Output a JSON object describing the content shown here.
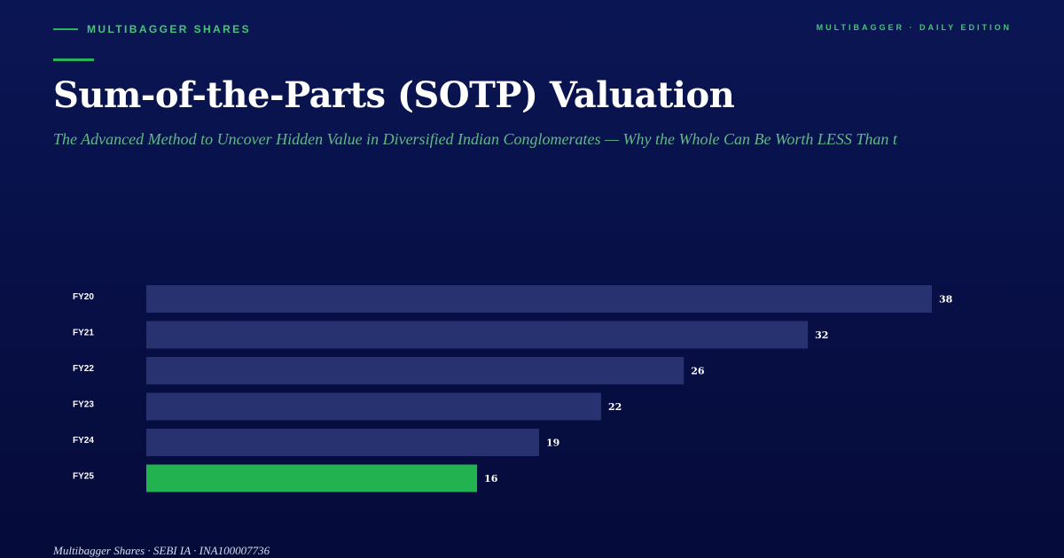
{
  "header": {
    "brand": "MULTIBAGGER SHARES",
    "edition": "MULTIBAGGER · DAILY EDITION"
  },
  "article": {
    "title": "Sum-of-the-Parts (SOTP) Valuation",
    "subtitle": "The Advanced Method to Uncover Hidden Value in Diversified Indian Conglomerates — Why the Whole Can Be Worth LESS Than t"
  },
  "footer": {
    "text": "Multibagger Shares · SEBI IA · INA100007736"
  },
  "colors": {
    "bar": "#283270",
    "highlight": "#22b24f",
    "accent": "#27b45a"
  },
  "chart_data": {
    "type": "bar",
    "orientation": "horizontal",
    "categories": [
      "FY20",
      "FY21",
      "FY22",
      "FY23",
      "FY24",
      "FY25"
    ],
    "values": [
      38,
      32,
      26,
      22,
      19,
      16
    ],
    "highlight_index": 5,
    "xlim": [
      0,
      38
    ],
    "grid": false,
    "legend": "none",
    "title": "",
    "xlabel": "",
    "ylabel": ""
  }
}
